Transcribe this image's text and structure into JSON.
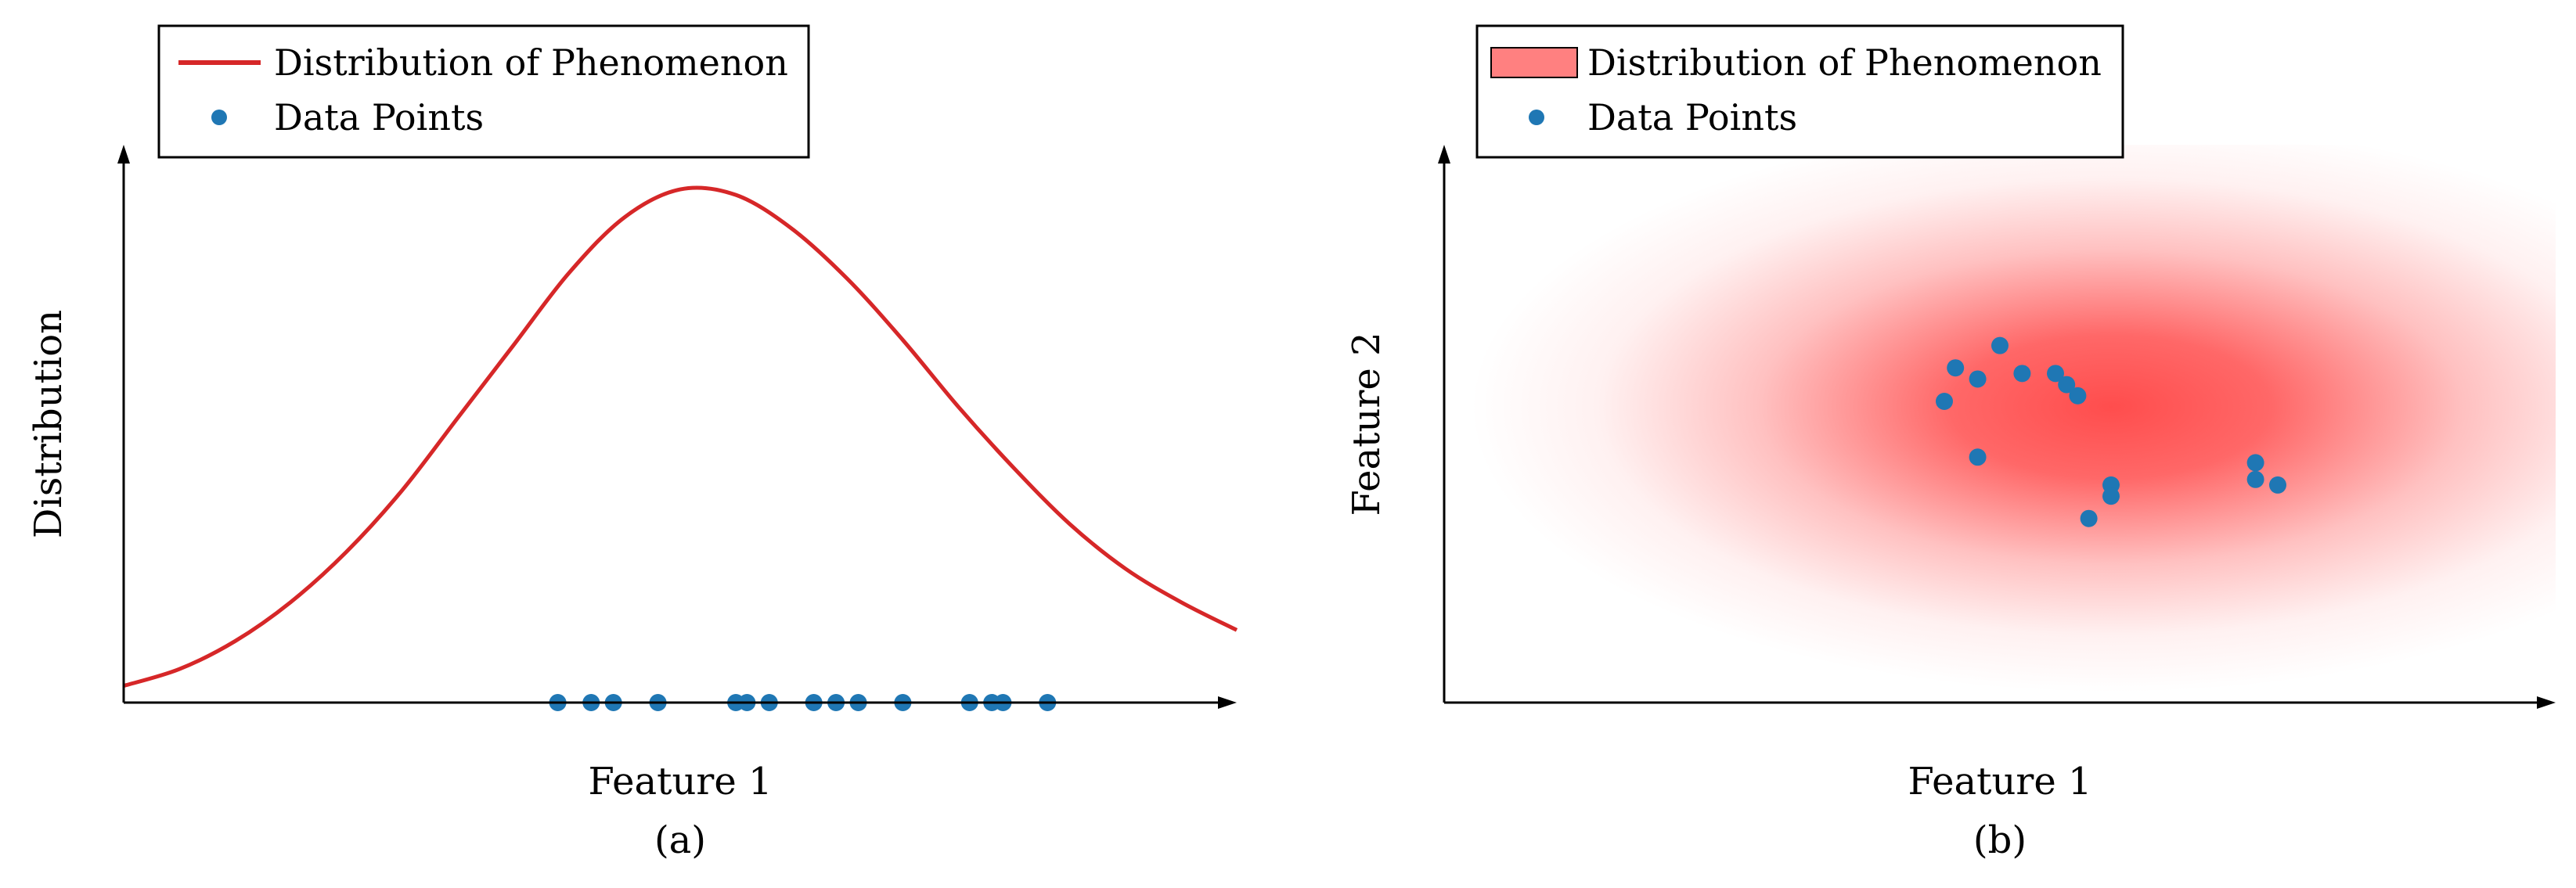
{
  "chart_data": [
    {
      "type": "line",
      "caption": "(a)",
      "xlabel": "Feature 1",
      "ylabel": "Distribution",
      "xlim": [
        0,
        1
      ],
      "ylim": [
        0,
        1
      ],
      "grid": false,
      "legend_position": "top-left",
      "series": [
        {
          "name": "Distribution of Phenomenon",
          "kind": "curve",
          "color": "#d62728",
          "x": [
            0.0,
            0.05,
            0.1,
            0.15,
            0.2,
            0.25,
            0.3,
            0.35,
            0.4,
            0.45,
            0.5,
            0.55,
            0.6,
            0.65,
            0.7,
            0.75,
            0.8,
            0.85,
            0.9,
            0.95,
            1.0
          ],
          "y": [
            0.03,
            0.06,
            0.11,
            0.18,
            0.27,
            0.38,
            0.51,
            0.64,
            0.77,
            0.87,
            0.92,
            0.91,
            0.85,
            0.76,
            0.65,
            0.53,
            0.42,
            0.32,
            0.24,
            0.18,
            0.13
          ]
        },
        {
          "name": "Data Points",
          "kind": "scatter",
          "color": "#1f77b4",
          "x": [
            0.39,
            0.42,
            0.44,
            0.48,
            0.55,
            0.56,
            0.58,
            0.62,
            0.64,
            0.66,
            0.7,
            0.76,
            0.78,
            0.79,
            0.83
          ],
          "y": [
            0,
            0,
            0,
            0,
            0,
            0,
            0,
            0,
            0,
            0,
            0,
            0,
            0,
            0,
            0
          ]
        }
      ]
    },
    {
      "type": "scatter",
      "caption": "(b)",
      "xlabel": "Feature 1",
      "ylabel": "Feature 2",
      "xlim": [
        0,
        1
      ],
      "ylim": [
        0,
        1
      ],
      "grid": false,
      "legend_position": "top-left",
      "density": {
        "name": "Distribution of Phenomenon",
        "color": "#ff4d4d",
        "center": [
          0.6,
          0.53
        ],
        "spread": [
          0.18,
          0.16
        ]
      },
      "series": [
        {
          "name": "Data Points",
          "color": "#1f77b4",
          "x": [
            0.45,
            0.46,
            0.48,
            0.5,
            0.52,
            0.55,
            0.56,
            0.57,
            0.48,
            0.6,
            0.6,
            0.58,
            0.73,
            0.73,
            0.75
          ],
          "y": [
            0.54,
            0.6,
            0.58,
            0.64,
            0.59,
            0.59,
            0.57,
            0.55,
            0.44,
            0.39,
            0.37,
            0.33,
            0.43,
            0.4,
            0.39
          ]
        }
      ]
    }
  ]
}
